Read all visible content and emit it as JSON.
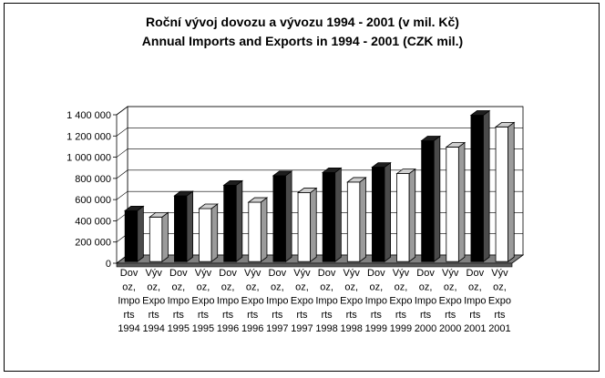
{
  "chart_data": {
    "type": "bar",
    "title": "Roční vývoj dovozu a vývozu 1994 - 2001 (v mil. Kč)",
    "subtitle": "Annual Imports and Exports in 1994 - 2001 (CZK mil.)",
    "ylim": [
      0,
      1400000
    ],
    "yticks": [
      "0",
      "200 000",
      "400 000",
      "600 000",
      "800 000",
      "1 000 000",
      "1 200 000",
      "1 400 000"
    ],
    "grid": true,
    "categories": [
      [
        "Dov",
        "oz,",
        "Impo",
        "rts",
        "1994"
      ],
      [
        "Výv",
        "oz,",
        "Expo",
        "rts",
        "1994"
      ],
      [
        "Dov",
        "oz,",
        "Impo",
        "rts",
        "1995"
      ],
      [
        "Výv",
        "oz,",
        "Expo",
        "rts",
        "1995"
      ],
      [
        "Dov",
        "oz,",
        "Impo",
        "rts",
        "1996"
      ],
      [
        "Výv",
        "oz,",
        "Expo",
        "rts",
        "1996"
      ],
      [
        "Dov",
        "oz,",
        "Impo",
        "rts",
        "1997"
      ],
      [
        "Výv",
        "oz,",
        "Expo",
        "rts",
        "1997"
      ],
      [
        "Dov",
        "oz,",
        "Impo",
        "rts",
        "1998"
      ],
      [
        "Výv",
        "oz,",
        "Expo",
        "rts",
        "1998"
      ],
      [
        "Dov",
        "oz,",
        "Impo",
        "rts",
        "1999"
      ],
      [
        "Výv",
        "oz,",
        "Expo",
        "rts",
        "1999"
      ],
      [
        "Dov",
        "oz,",
        "Impo",
        "rts",
        "2000"
      ],
      [
        "Výv",
        "oz,",
        "Expo",
        "rts",
        "2000"
      ],
      [
        "Dov",
        "oz,",
        "Impo",
        "rts",
        "2001"
      ],
      [
        "Výv",
        "oz,",
        "Expo",
        "rts",
        "2001"
      ]
    ],
    "values": [
      480000,
      420000,
      620000,
      500000,
      720000,
      560000,
      810000,
      650000,
      840000,
      750000,
      890000,
      830000,
      1140000,
      1080000,
      1380000,
      1270000
    ],
    "series_kind": [
      "import",
      "export",
      "import",
      "export",
      "import",
      "export",
      "import",
      "export",
      "import",
      "export",
      "import",
      "export",
      "import",
      "export",
      "import",
      "export"
    ],
    "colors": {
      "import": "#000000",
      "import_side": "#4a4a4a",
      "import_top": "#1e1e1e",
      "export": "#ffffff",
      "export_side": "#9b9b9b",
      "export_top": "#cfcfcf",
      "floor": "#808080",
      "grid": "#000000"
    }
  }
}
